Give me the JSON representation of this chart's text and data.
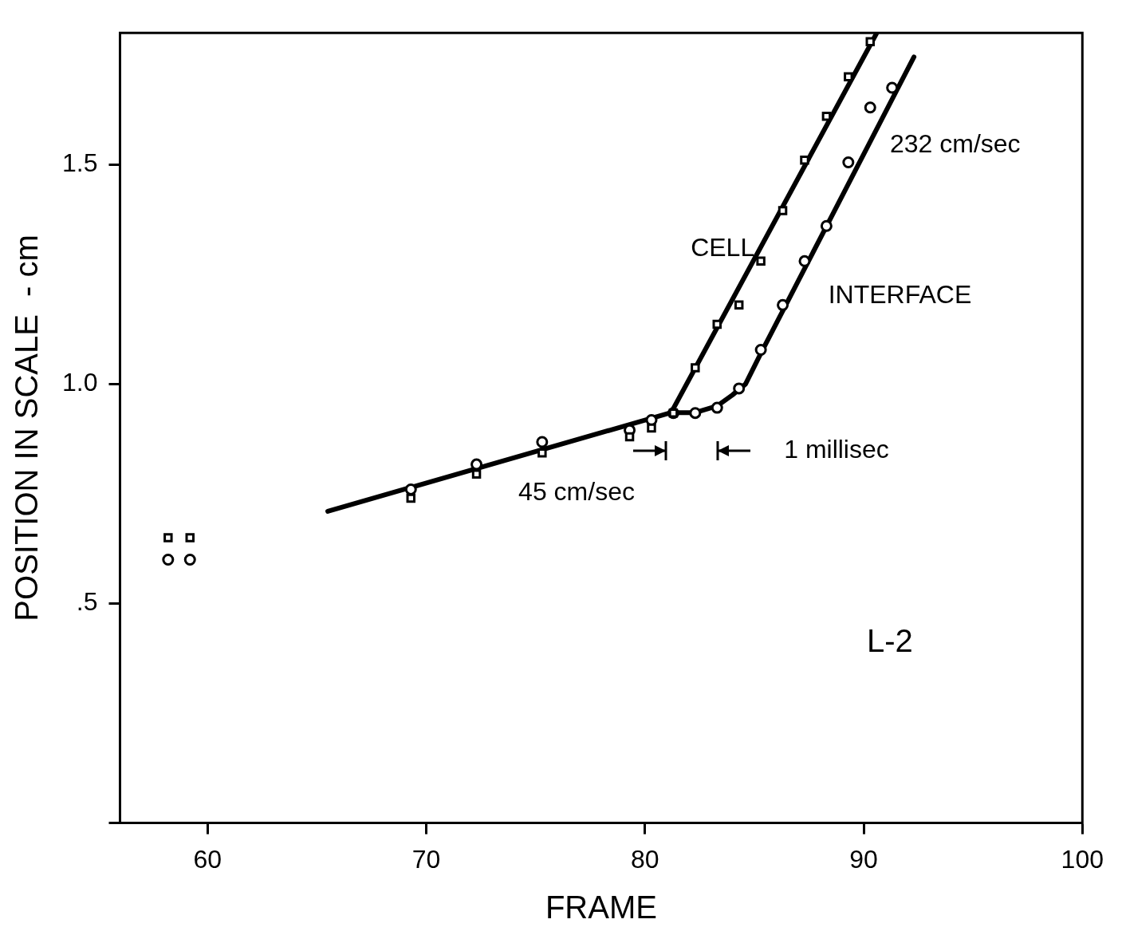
{
  "chart_data": {
    "type": "scatter",
    "xlabel": "FRAME",
    "ylabel": "POSITION IN SCALE  - cm",
    "xlim": [
      56,
      100
    ],
    "xticks": [
      60,
      70,
      80,
      90,
      100
    ],
    "ylim": [
      0,
      1.8
    ],
    "yticks": [
      {
        "value": 0,
        "label": null
      },
      {
        "value": 0.5,
        "label": ".5"
      },
      {
        "value": 1,
        "label": "1.0"
      },
      {
        "value": 1.5,
        "label": "1.5"
      }
    ],
    "grid": false,
    "legend": false,
    "series": [
      {
        "type": "scatter",
        "marker": "square",
        "color": "#000000",
        "x": [
          58.2,
          59.2,
          69.3,
          72.3,
          75.3,
          79.3,
          80.3,
          81.3,
          82.3,
          83.3,
          84.3,
          85.3,
          86.3,
          87.3,
          88.3,
          89.3,
          90.3
        ],
        "values": [
          0.65,
          0.65,
          0.74,
          0.795,
          0.843,
          0.88,
          0.9,
          0.934,
          1.037,
          1.136,
          1.18,
          1.28,
          1.395,
          1.51,
          1.61,
          1.7,
          1.78
        ]
      },
      {
        "type": "scatter",
        "marker": "circle",
        "color": "#000000",
        "x": [
          58.2,
          59.2,
          69.3,
          72.3,
          75.3,
          79.3,
          80.3,
          81.3,
          82.3,
          83.3,
          84.3,
          85.3,
          86.3,
          87.3,
          88.3,
          89.3,
          90.3,
          91.3
        ],
        "values": [
          0.6,
          0.6,
          0.76,
          0.817,
          0.868,
          0.895,
          0.918,
          0.934,
          0.934,
          0.946,
          0.99,
          1.078,
          1.18,
          1.28,
          1.36,
          1.505,
          1.63,
          1.675
        ]
      },
      {
        "type": "line",
        "color": "#000000",
        "x": [
          65.5,
          81.2
        ],
        "values": [
          0.71,
          0.935
        ]
      },
      {
        "type": "line",
        "color": "#000000",
        "x": [
          81.2,
          90.6
        ],
        "values": [
          0.935,
          1.8
        ]
      },
      {
        "type": "line",
        "color": "#000000",
        "x": [
          81.2,
          82.3,
          83.3,
          84.0,
          84.6,
          85.3,
          92.3
        ],
        "values": [
          0.935,
          0.935,
          0.95,
          0.975,
          1.0,
          1.07,
          1.745
        ]
      }
    ],
    "annotations": [
      "CELL",
      "INTERFACE",
      "232 cm/sec",
      "45 cm/sec",
      "1 millisec",
      "L-2"
    ]
  }
}
